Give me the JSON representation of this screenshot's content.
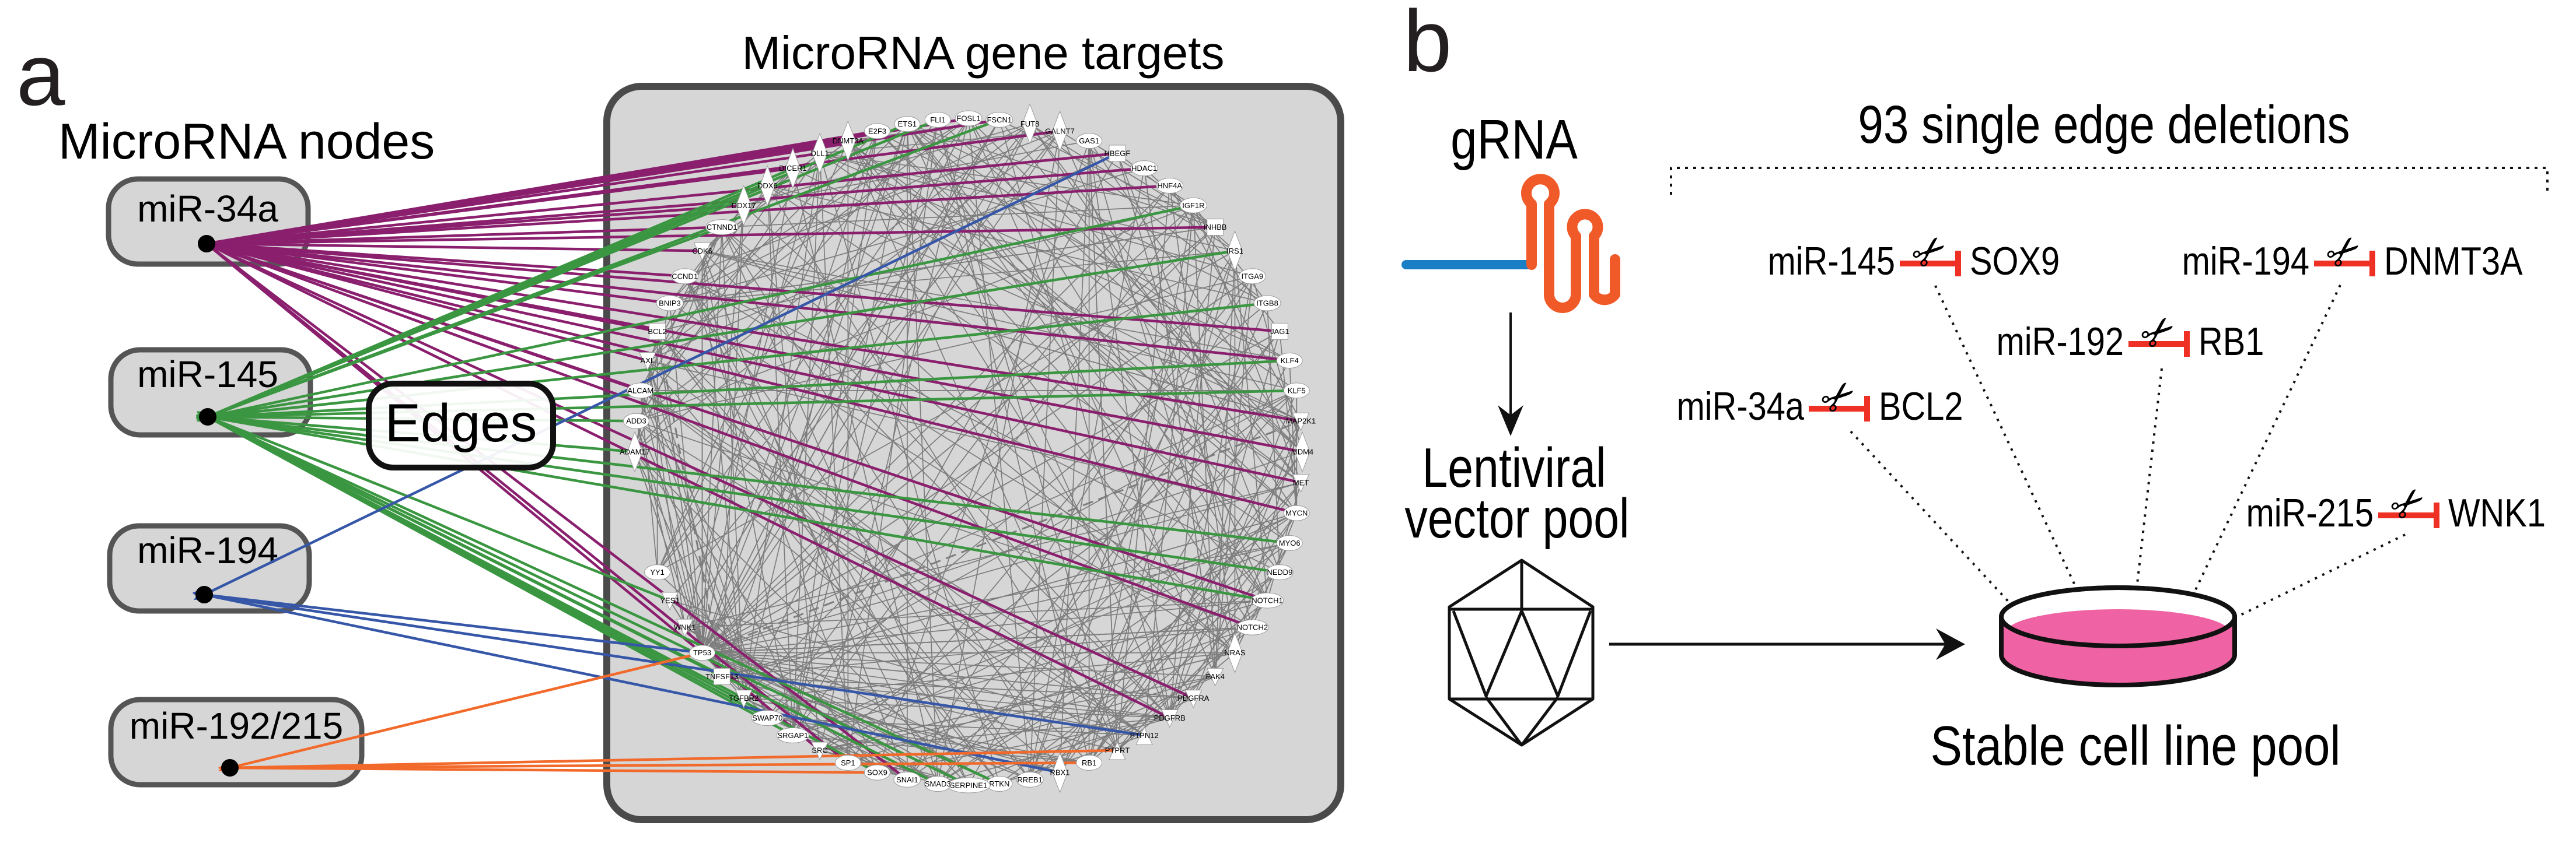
{
  "panel_a": {
    "label": "a",
    "nodes_title": "MicroRNA nodes",
    "targets_title": "MicroRNA gene targets",
    "edges_label": "Edges",
    "mirnas": [
      {
        "name": "miR-34a",
        "color": "#8a1f6e",
        "targets": [
          "DNMT3A",
          "DLL1",
          "E2F3",
          "FOSL1",
          "FSCN1",
          "GALNT7",
          "HBEGF",
          "HDAC1",
          "HNF4A",
          "INHBB",
          "CCND1",
          "CDK6",
          "BCL2",
          "BNIP3",
          "AXL",
          "JAG1",
          "KLF4",
          "MAP2K1",
          "MDM4",
          "MET",
          "MYCN",
          "NOTCH1",
          "NOTCH2",
          "PDGFRA",
          "PDGFRB",
          "SNAI1",
          "SP1",
          "SRC",
          "CTNND1",
          "DDX17",
          "DICER1",
          "ALCAM"
        ]
      },
      {
        "name": "miR-145",
        "color": "#3a9640",
        "targets": [
          "FSCN1",
          "ETS1",
          "FLI1",
          "IGF1R",
          "IRS1",
          "ITGB8",
          "KLF4",
          "KLF5",
          "DDX6",
          "DICER1",
          "ADD3",
          "ADAM17",
          "CTNND1",
          "MYO6",
          "NEDD9",
          "NOTCH1",
          "SERPINE1",
          "SMAD3",
          "SOX9",
          "SWAP70",
          "SRGAP1",
          "TNFSF13",
          "YES1",
          "TGFBR2",
          "RTKN"
        ]
      },
      {
        "name": "miR-194",
        "color": "#3656a8",
        "targets": [
          "HBEGF",
          "TP53",
          "PTPN12",
          "RBX1"
        ]
      },
      {
        "name": "miR-192/215",
        "color": "#f26a2b",
        "targets": [
          "TP53",
          "PTPRT",
          "RB1",
          "SOX9"
        ]
      }
    ],
    "genes": [
      {
        "name": "ADAM17",
        "shape": "diamond"
      },
      {
        "name": "ADD3",
        "shape": "ellipse"
      },
      {
        "name": "ALCAM",
        "shape": "ellipse"
      },
      {
        "name": "AXL",
        "shape": "tri-down"
      },
      {
        "name": "BCL2",
        "shape": "rect"
      },
      {
        "name": "BNIP3",
        "shape": "ellipse"
      },
      {
        "name": "CCND1",
        "shape": "ellipse"
      },
      {
        "name": "CDK6",
        "shape": "tri-down"
      },
      {
        "name": "CTNND1",
        "shape": "ellipse"
      },
      {
        "name": "DDX17",
        "shape": "diamond"
      },
      {
        "name": "DDX6",
        "shape": "diamond"
      },
      {
        "name": "DICER1",
        "shape": "diamond"
      },
      {
        "name": "DLL1",
        "shape": "diamond"
      },
      {
        "name": "DNMT3A",
        "shape": "diamond"
      },
      {
        "name": "E2F3",
        "shape": "ellipse"
      },
      {
        "name": "ETS1",
        "shape": "ellipse"
      },
      {
        "name": "FLI1",
        "shape": "ellipse"
      },
      {
        "name": "FOSL1",
        "shape": "ellipse"
      },
      {
        "name": "FSCN1",
        "shape": "ellipse"
      },
      {
        "name": "FUT8",
        "shape": "diamond"
      },
      {
        "name": "GALNT7",
        "shape": "diamond"
      },
      {
        "name": "GAS1",
        "shape": "ellipse"
      },
      {
        "name": "HBEGF",
        "shape": "rect"
      },
      {
        "name": "HDAC1",
        "shape": "ellipse"
      },
      {
        "name": "HNF4A",
        "shape": "ellipse"
      },
      {
        "name": "IGF1R",
        "shape": "ellipse"
      },
      {
        "name": "INHBB",
        "shape": "rect"
      },
      {
        "name": "IRS1",
        "shape": "diamond"
      },
      {
        "name": "ITGA9",
        "shape": "ellipse"
      },
      {
        "name": "ITGB8",
        "shape": "ellipse"
      },
      {
        "name": "JAG1",
        "shape": "rect"
      },
      {
        "name": "KLF4",
        "shape": "ellipse"
      },
      {
        "name": "KLF5",
        "shape": "ellipse"
      },
      {
        "name": "MAP2K1",
        "shape": "tri-down"
      },
      {
        "name": "MDM4",
        "shape": "diamond"
      },
      {
        "name": "MET",
        "shape": "tri-down"
      },
      {
        "name": "MYCN",
        "shape": "ellipse"
      },
      {
        "name": "MYO6",
        "shape": "ellipse"
      },
      {
        "name": "NEDD9",
        "shape": "ellipse"
      },
      {
        "name": "NOTCH1",
        "shape": "ellipse"
      },
      {
        "name": "NOTCH2",
        "shape": "ellipse"
      },
      {
        "name": "NRAS",
        "shape": "diamond"
      },
      {
        "name": "PAK4",
        "shape": "tri-down"
      },
      {
        "name": "PDGFRA",
        "shape": "tri-down"
      },
      {
        "name": "PDGFRB",
        "shape": "tri-down"
      },
      {
        "name": "PTPN12",
        "shape": "tri-up"
      },
      {
        "name": "PTPRT",
        "shape": "tri-up"
      },
      {
        "name": "RB1",
        "shape": "ellipse"
      },
      {
        "name": "RBX1",
        "shape": "diamond"
      },
      {
        "name": "RREB1",
        "shape": "ellipse"
      },
      {
        "name": "RTKN",
        "shape": "ellipse"
      },
      {
        "name": "SERPINE1",
        "shape": "ellipse"
      },
      {
        "name": "SMAD3",
        "shape": "ellipse"
      },
      {
        "name": "SNAI1",
        "shape": "ellipse"
      },
      {
        "name": "SOX9",
        "shape": "ellipse"
      },
      {
        "name": "SP1",
        "shape": "ellipse"
      },
      {
        "name": "SRC",
        "shape": "tri-down"
      },
      {
        "name": "SRGAP1",
        "shape": "ellipse"
      },
      {
        "name": "SWAP70",
        "shape": "ellipse"
      },
      {
        "name": "TGFBR2",
        "shape": "tri-down"
      },
      {
        "name": "TNFSF13",
        "shape": "rect"
      },
      {
        "name": "TP53",
        "shape": "ellipse"
      },
      {
        "name": "WNK1",
        "shape": "tri-down"
      },
      {
        "name": "YES1",
        "shape": "tri-down"
      },
      {
        "name": "YY1",
        "shape": "ellipse"
      }
    ]
  },
  "panel_b": {
    "label": "b",
    "grna_label": "gRNA",
    "vector_label_line1": "Lentiviral",
    "vector_label_line2": "vector pool",
    "deletions_title": "93 single edge deletions",
    "cell_pool_label": "Stable cell line pool",
    "examples": [
      {
        "mirna": "miR-145",
        "gene": "SOX9"
      },
      {
        "mirna": "miR-194",
        "gene": "DNMT3A"
      },
      {
        "mirna": "miR-192",
        "gene": "RB1"
      },
      {
        "mirna": "miR-34a",
        "gene": "BCL2"
      },
      {
        "mirna": "miR-215",
        "gene": "WNK1"
      }
    ],
    "colors": {
      "grna_stem": "#1a7fc4",
      "grna_hairpin": "#f05a28",
      "inhibit": "#ee3124",
      "media": "#ef62a3"
    }
  }
}
